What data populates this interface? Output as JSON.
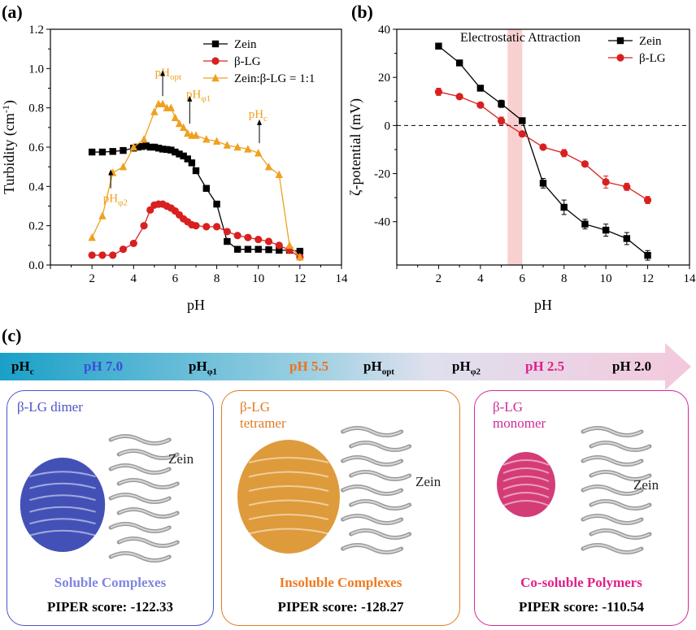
{
  "panel_labels": {
    "a": "(a)",
    "b": "(b)",
    "c": "(c)"
  },
  "chart_data": [
    {
      "type": "line",
      "panel": "(a)",
      "xlabel": "pH",
      "ylabel": "Turbidity (cm-1)",
      "xlim": [
        0,
        14
      ],
      "ylim": [
        0.0,
        1.2
      ],
      "xticks": [
        0,
        2,
        4,
        6,
        8,
        10,
        12,
        14
      ],
      "xtick_labels": [
        "",
        "2",
        "4",
        "6",
        "8",
        "10",
        "12",
        "14"
      ],
      "yticks": [
        0.0,
        0.2,
        0.4,
        0.6,
        0.8,
        1.0,
        1.2
      ],
      "ytick_labels": [
        "0.0",
        "0.2",
        "0.4",
        "0.6",
        "0.8",
        "1.0",
        "1.2"
      ],
      "legend_position": "top-right",
      "series": [
        {
          "name": "Zein",
          "color": "#000000",
          "marker": "square",
          "x": [
            2,
            2.5,
            3,
            3.5,
            4,
            4.2,
            4.4,
            4.6,
            4.8,
            5,
            5.2,
            5.4,
            5.6,
            5.8,
            6,
            6.2,
            6.4,
            6.6,
            6.8,
            7,
            7.5,
            8,
            8.5,
            9,
            9.5,
            10,
            10.5,
            11,
            11.5,
            12
          ],
          "y": [
            0.575,
            0.575,
            0.578,
            0.583,
            0.595,
            0.6,
            0.603,
            0.607,
            0.6,
            0.6,
            0.595,
            0.59,
            0.588,
            0.585,
            0.575,
            0.565,
            0.555,
            0.54,
            0.52,
            0.48,
            0.39,
            0.31,
            0.12,
            0.08,
            0.08,
            0.08,
            0.078,
            0.075,
            0.075,
            0.07
          ]
        },
        {
          "name": "β-LG",
          "color": "#d92020",
          "marker": "circle",
          "x": [
            2,
            2.5,
            3,
            3.5,
            4,
            4.5,
            4.8,
            5,
            5.2,
            5.4,
            5.6,
            5.8,
            6,
            6.2,
            6.4,
            6.6,
            6.8,
            7,
            7.5,
            8,
            8.5,
            9,
            9.5,
            10,
            10.5,
            11,
            11.5,
            12
          ],
          "y": [
            0.05,
            0.05,
            0.05,
            0.08,
            0.11,
            0.2,
            0.28,
            0.305,
            0.31,
            0.31,
            0.3,
            0.29,
            0.275,
            0.255,
            0.235,
            0.22,
            0.205,
            0.2,
            0.195,
            0.195,
            0.17,
            0.15,
            0.14,
            0.13,
            0.12,
            0.1,
            0.075,
            0.04
          ]
        },
        {
          "name": "Zein:β-LG = 1:1",
          "color": "#f0a020",
          "marker": "triangle",
          "x": [
            2,
            2.5,
            3,
            3.5,
            4,
            4.5,
            5,
            5.2,
            5.4,
            5.6,
            5.8,
            6,
            6.2,
            6.4,
            6.6,
            6.8,
            7,
            7.5,
            8,
            8.5,
            9,
            9.5,
            10,
            10.5,
            11,
            11.5,
            12
          ],
          "y": [
            0.14,
            0.25,
            0.47,
            0.5,
            0.6,
            0.64,
            0.78,
            0.82,
            0.82,
            0.8,
            0.8,
            0.75,
            0.72,
            0.7,
            0.67,
            0.66,
            0.66,
            0.64,
            0.63,
            0.61,
            0.6,
            0.59,
            0.57,
            0.5,
            0.46,
            0.1,
            0.04
          ]
        }
      ],
      "annotations": [
        {
          "text": "pH",
          "sub": "opt",
          "x": 5.5,
          "y": 0.96
        },
        {
          "text": "pH",
          "sub": "φ1",
          "x": 7.0,
          "y": 0.85
        },
        {
          "text": "pH",
          "sub": "c",
          "x": 10.0,
          "y": 0.75
        },
        {
          "text": "pH",
          "sub": "φ2",
          "x": 3.0,
          "y": 0.32
        }
      ]
    },
    {
      "type": "line",
      "panel": "(b)",
      "xlabel": "pH",
      "ylabel": "ζ-potential (mV)",
      "xlim": [
        0,
        14
      ],
      "ylim": [
        -58,
        40
      ],
      "xticks": [
        0,
        2,
        4,
        6,
        8,
        10,
        12,
        14
      ],
      "xtick_labels": [
        "",
        "2",
        "4",
        "6",
        "8",
        "10",
        "12",
        "14"
      ],
      "yticks": [
        -40,
        -20,
        0,
        20,
        40
      ],
      "ytick_labels": [
        "-40",
        "-20",
        "0",
        "20",
        "40"
      ],
      "legend_position": "top-right",
      "highlight_band": {
        "x0": 5.3,
        "x1": 6.0,
        "label": "Electrostatic Attraction"
      },
      "zero_line": "dashed",
      "series": [
        {
          "name": "Zein",
          "color": "#000000",
          "marker": "square",
          "x": [
            2,
            3,
            4,
            5,
            6,
            7,
            8,
            9,
            10,
            11,
            12
          ],
          "y": [
            33,
            26,
            15.5,
            9,
            2,
            -24,
            -34,
            -41,
            -43.5,
            -47,
            -54
          ],
          "err": [
            1.2,
            1.0,
            1.0,
            1.5,
            1.0,
            2.0,
            3.0,
            2.0,
            2.5,
            2.5,
            2.0
          ]
        },
        {
          "name": "β-LG",
          "color": "#d92020",
          "marker": "circle",
          "x": [
            2,
            3,
            4,
            5,
            6,
            7,
            8,
            9,
            10,
            11,
            12
          ],
          "y": [
            14,
            12,
            8.5,
            2,
            -3.5,
            -9,
            -11.5,
            -16,
            -23.5,
            -25.5,
            -31
          ],
          "err": [
            1.5,
            1.0,
            1.0,
            1.5,
            1.0,
            1.0,
            1.5,
            1.0,
            2.5,
            1.5,
            1.5
          ]
        }
      ]
    }
  ],
  "ph_scale": {
    "stages": [
      {
        "text": "pH",
        "sub": "c",
        "color": "#000000"
      },
      {
        "text": "pH 7.0",
        "sub": "",
        "color": "#3a4fd8"
      },
      {
        "text": "pH",
        "sub": "φ1",
        "color": "#000000"
      },
      {
        "text": "pH 5.5",
        "sub": "",
        "color": "#f07020"
      },
      {
        "text": "pH",
        "sub": "opt",
        "color": "#000000"
      },
      {
        "text": "pH",
        "sub": "φ2",
        "color": "#000000"
      },
      {
        "text": "pH 2.5",
        "sub": "",
        "color": "#e0208a"
      },
      {
        "text": "pH 2.0",
        "sub": "",
        "color": "#000000"
      }
    ]
  },
  "complexes": [
    {
      "label_line1": "β-LG dimer",
      "label_line2": "",
      "zein": "Zein",
      "caption": "Soluble Complexes",
      "score": "PIPER score: -122.33",
      "color": "#4a55c8",
      "caption_color": "#7f86e0",
      "protein_color": "#2233aa"
    },
    {
      "label_line1": "β-LG",
      "label_line2": "tetramer",
      "zein": "Zein",
      "caption": "Insoluble Complexes",
      "score": "PIPER score: -128.27",
      "color": "#e07a20",
      "caption_color": "#f07a20",
      "protein_color": "#d88a1a"
    },
    {
      "label_line1": "β-LG",
      "label_line2": "monomer",
      "zein": "Zein",
      "caption": "Co-soluble Polymers",
      "score": "PIPER score: -110.54",
      "color": "#d02a9a",
      "caption_color": "#e0208a",
      "protein_color": "#cc1a60"
    }
  ]
}
